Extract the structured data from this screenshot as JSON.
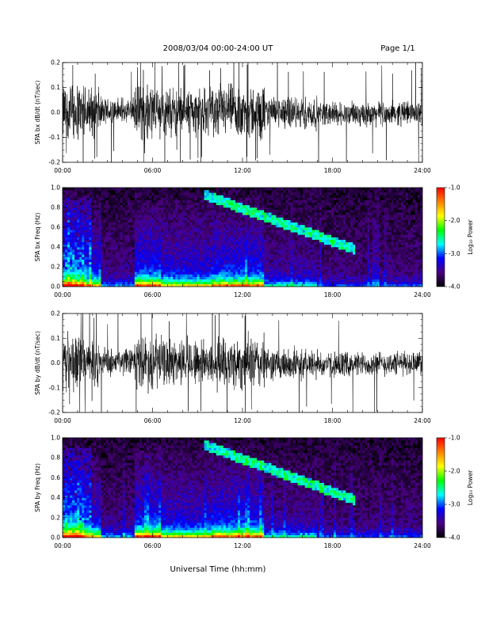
{
  "header": {
    "title": "2008/03/04  00:00-24:00 UT",
    "page": "Page 1/1"
  },
  "x_axis_title": "Universal Time (hh:mm)",
  "colorbar": {
    "label": "Log₁₀ Power",
    "ticks": [
      "-1.0",
      "-2.0",
      "-3.0",
      "-4.0"
    ],
    "range": [
      -4.0,
      -1.0
    ],
    "colormap": [
      "#000000",
      "#4b0082",
      "#0000ff",
      "#00ffff",
      "#00ff00",
      "#ffff00",
      "#ff8000",
      "#ff0000"
    ]
  },
  "chart_data": [
    {
      "type": "line",
      "title": "",
      "ylabel": "SPA bx dB/dt (nT/sec)",
      "xlabel": "",
      "x_ticks": [
        "00:00",
        "06:00",
        "12:00",
        "18:00",
        "24:00"
      ],
      "y_ticks": [
        "0.2",
        "0.1",
        "0.0",
        "-0.1",
        "-0.2"
      ],
      "xlim": [
        0,
        24
      ],
      "ylim": [
        -0.2,
        0.2
      ],
      "grid": false,
      "color": "#000000"
    },
    {
      "type": "heatmap",
      "title": "",
      "ylabel": "SPA bx Freq (Hz)",
      "xlabel": "",
      "x_ticks": [
        "00:00",
        "06:00",
        "12:00",
        "18:00",
        "24:00"
      ],
      "y_ticks": [
        "1.0",
        "0.8",
        "0.6",
        "0.4",
        "0.2",
        "0.0"
      ],
      "xlim": [
        0,
        24
      ],
      "ylim": [
        0.0,
        1.0
      ],
      "color_range": [
        -4.0,
        -1.0
      ]
    },
    {
      "type": "line",
      "title": "",
      "ylabel": "SPA by dB/dt (nT/sec)",
      "xlabel": "",
      "x_ticks": [
        "00:00",
        "06:00",
        "12:00",
        "18:00",
        "24:00"
      ],
      "y_ticks": [
        "0.2",
        "0.1",
        "0.0",
        "-0.1",
        "-0.2"
      ],
      "xlim": [
        0,
        24
      ],
      "ylim": [
        -0.2,
        0.2
      ],
      "grid": false,
      "color": "#000000"
    },
    {
      "type": "heatmap",
      "title": "",
      "ylabel": "SPA by Freq (Hz)",
      "xlabel": "",
      "x_ticks": [
        "00:00",
        "06:00",
        "12:00",
        "18:00",
        "24:00"
      ],
      "y_ticks": [
        "1.0",
        "0.8",
        "0.6",
        "0.4",
        "0.2",
        "0.0"
      ],
      "xlim": [
        0,
        24
      ],
      "ylim": [
        0.0,
        1.0
      ],
      "color_range": [
        -4.0,
        -1.0
      ]
    }
  ]
}
